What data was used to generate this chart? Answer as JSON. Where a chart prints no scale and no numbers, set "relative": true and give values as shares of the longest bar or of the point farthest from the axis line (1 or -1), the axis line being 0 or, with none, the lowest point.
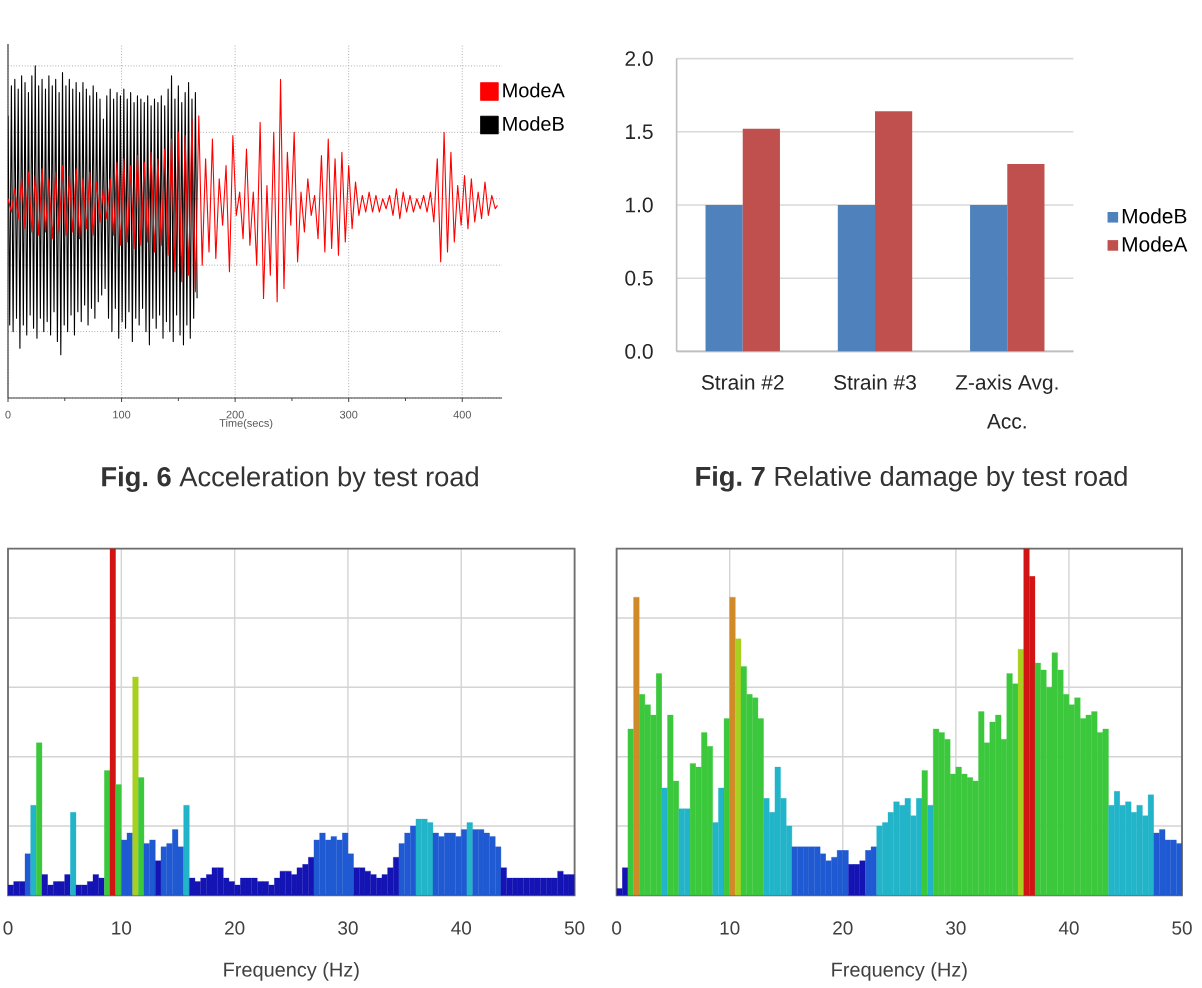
{
  "chart_data": [
    {
      "type": "line",
      "title": "**Fig. 6** Acceleration by test road",
      "xlabel": "Time(secs)",
      "relative": true,
      "xlim": [
        0,
        435
      ],
      "xticks": [
        0,
        {
          "value": 50,
          "label": null
        },
        100,
        {
          "value": 150,
          "label": null
        },
        200,
        {
          "value": 250,
          "label": null
        },
        300,
        {
          "value": 350,
          "label": null
        },
        400
      ],
      "grid": true,
      "legend": "top right",
      "series": [
        {
          "name": "ModeA",
          "color": "#ff0000",
          "x": [
            0,
            3,
            6,
            9,
            12,
            15,
            18,
            21,
            24,
            27,
            30,
            33,
            36,
            39,
            42,
            45,
            48,
            51,
            54,
            57,
            60,
            63,
            66,
            69,
            72,
            75,
            78,
            81,
            84,
            87,
            90,
            93,
            96,
            99,
            102,
            105,
            108,
            111,
            114,
            117,
            120,
            123,
            126,
            129,
            132,
            135,
            138,
            141,
            144,
            147,
            150,
            153,
            156,
            159,
            162,
            165,
            168,
            171,
            174,
            177,
            180,
            183,
            186,
            189,
            192,
            195,
            198,
            201,
            204,
            207,
            210,
            213,
            216,
            219,
            222,
            225,
            228,
            231,
            234,
            237,
            240,
            243,
            246,
            249,
            252,
            255,
            258,
            261,
            264,
            267,
            270,
            273,
            276,
            279,
            282,
            285,
            288,
            291,
            294,
            297,
            300,
            303,
            306,
            309,
            312,
            315,
            318,
            321,
            324,
            327,
            330,
            333,
            336,
            339,
            342,
            345,
            348,
            351,
            354,
            357,
            360,
            363,
            366,
            369,
            372,
            375,
            378,
            381,
            384,
            387,
            390,
            393,
            396,
            399,
            402,
            405,
            408,
            411,
            414,
            417,
            420,
            423,
            426,
            429,
            431
          ],
          "values": [
            0.6,
            0.56,
            0.63,
            0.54,
            0.66,
            0.51,
            0.68,
            0.5,
            0.67,
            0.49,
            0.69,
            0.5,
            0.66,
            0.48,
            0.68,
            0.5,
            0.7,
            0.49,
            0.67,
            0.5,
            0.69,
            0.48,
            0.66,
            0.51,
            0.68,
            0.49,
            0.65,
            0.53,
            0.63,
            0.54,
            0.66,
            0.49,
            0.71,
            0.46,
            0.72,
            0.47,
            0.7,
            0.45,
            0.73,
            0.46,
            0.71,
            0.47,
            0.74,
            0.44,
            0.72,
            0.46,
            0.75,
            0.43,
            0.78,
            0.38,
            0.8,
            0.35,
            0.79,
            0.37,
            0.84,
            0.32,
            0.85,
            0.4,
            0.72,
            0.44,
            0.78,
            0.42,
            0.66,
            0.52,
            0.7,
            0.38,
            0.79,
            0.55,
            0.62,
            0.48,
            0.75,
            0.46,
            0.62,
            0.4,
            0.83,
            0.3,
            0.64,
            0.37,
            0.8,
            0.29,
            0.96,
            0.33,
            0.74,
            0.52,
            0.8,
            0.41,
            0.62,
            0.5,
            0.66,
            0.55,
            0.61,
            0.48,
            0.73,
            0.44,
            0.78,
            0.45,
            0.72,
            0.43,
            0.74,
            0.47,
            0.7,
            0.51,
            0.65,
            0.55,
            0.61,
            0.56,
            0.62,
            0.56,
            0.61,
            0.56,
            0.6,
            0.57,
            0.61,
            0.55,
            0.63,
            0.54,
            0.62,
            0.56,
            0.61,
            0.56,
            0.6,
            0.57,
            0.61,
            0.56,
            0.62,
            0.53,
            0.72,
            0.41,
            0.8,
            0.44,
            0.74,
            0.47,
            0.64,
            0.52,
            0.67,
            0.51,
            0.66,
            0.53,
            0.62,
            0.54,
            0.65,
            0.55,
            0.61,
            0.57,
            0.58
          ]
        },
        {
          "name": "ModeB",
          "color": "#000000",
          "x": [
            0,
            1.5,
            3,
            4.5,
            6,
            7.5,
            9,
            10.5,
            12,
            13.5,
            15,
            16.5,
            18,
            19.5,
            21,
            22.5,
            24,
            25.5,
            27,
            28.5,
            30,
            31.5,
            33,
            34.5,
            36,
            37.5,
            39,
            40.5,
            42,
            43.5,
            45,
            46.5,
            48,
            49.5,
            51,
            52.5,
            54,
            55.5,
            57,
            58.5,
            60,
            61.5,
            63,
            64.5,
            66,
            67.5,
            69,
            70.5,
            72,
            73.5,
            75,
            76.5,
            78,
            79.5,
            81,
            82.5,
            84,
            85.5,
            87,
            88.5,
            90,
            91.5,
            93,
            94.5,
            96,
            97.5,
            99,
            100.5,
            102,
            103.5,
            105,
            106.5,
            108,
            109.5,
            111,
            112.5,
            114,
            115.5,
            117,
            118.5,
            120,
            121.5,
            123,
            124.5,
            126,
            127.5,
            129,
            130.5,
            132,
            133.5,
            135,
            136.5,
            138,
            139.5,
            141,
            142.5,
            144,
            145.5,
            147,
            148.5,
            150,
            151.5,
            153,
            154.5,
            156,
            157.5,
            159,
            160.5,
            162,
            163.5,
            165,
            166.5
          ],
          "values": [
            0.85,
            0.22,
            0.94,
            0.2,
            0.96,
            0.24,
            0.93,
            0.15,
            0.97,
            0.22,
            0.95,
            0.19,
            0.92,
            0.25,
            0.97,
            0.21,
            1,
            0.18,
            0.94,
            0.24,
            0.96,
            0.2,
            0.93,
            0.23,
            0.97,
            0.19,
            0.94,
            0.26,
            0.96,
            0.17,
            0.92,
            0.13,
            0.98,
            0.22,
            0.94,
            0.2,
            0.96,
            0.25,
            0.93,
            0.19,
            0.95,
            0.26,
            0.92,
            0.23,
            0.95,
            0.28,
            0.93,
            0.22,
            0.91,
            0.27,
            0.94,
            0.24,
            0.92,
            0.29,
            0.9,
            0.31,
            0.84,
            0.33,
            0.91,
            0.24,
            0.93,
            0.2,
            0.9,
            0.27,
            0.92,
            0.18,
            0.91,
            0.23,
            0.93,
            0.21,
            0.9,
            0.26,
            0.92,
            0.17,
            0.89,
            0.24,
            0.91,
            0.22,
            0.9,
            0.27,
            0.89,
            0.2,
            0.91,
            0.16,
            0.88,
            0.24,
            0.9,
            0.21,
            0.89,
            0.25,
            0.91,
            0.18,
            0.88,
            0.23,
            0.93,
            0.2,
            0.97,
            0.17,
            0.9,
            0.25,
            0.94,
            0.19,
            0.89,
            0.16,
            0.92,
            0.22,
            0.95,
            0.18,
            0.9,
            0.24,
            0.92,
            0.3
          ]
        }
      ]
    },
    {
      "type": "bar",
      "title": "**Fig. 7** Relative damage by test road",
      "categories": [
        "Strain #2",
        "Strain #3",
        "Z-axis Avg. Acc."
      ],
      "ylim": [
        0,
        2
      ],
      "yticks": [
        {
          "value": 0,
          "label": "0.0"
        },
        {
          "value": 0.5,
          "label": "0.5"
        },
        {
          "value": 1,
          "label": "1.0"
        },
        {
          "value": 1.5,
          "label": "1.5"
        },
        {
          "value": 2,
          "label": "2.0"
        }
      ],
      "grid": "y",
      "legend": "right",
      "series": [
        {
          "name": "ModeB",
          "color": "#4f81bd",
          "values": [
            1,
            1,
            1
          ]
        },
        {
          "name": "ModeA",
          "color": "#c0504d",
          "values": [
            1.52,
            1.64,
            1.28
          ]
        }
      ]
    },
    {
      "type": "bar",
      "xlabel": "Frequency (Hz)",
      "relative": true,
      "xlim": [
        0,
        50
      ],
      "xticks": [
        0,
        10,
        20,
        30,
        40,
        50
      ],
      "grid": true,
      "x": [
        0.25,
        0.75,
        1.25,
        1.75,
        2.25,
        2.75,
        3.25,
        3.75,
        4.25,
        4.75,
        5.25,
        5.75,
        6.25,
        6.75,
        7.25,
        7.75,
        8.25,
        8.75,
        9.25,
        9.75,
        10.25,
        10.75,
        11.25,
        11.75,
        12.25,
        12.75,
        13.25,
        13.75,
        14.25,
        14.75,
        15.25,
        15.75,
        16.25,
        16.75,
        17.25,
        17.75,
        18.25,
        18.75,
        19.25,
        19.75,
        20.25,
        20.75,
        21.25,
        21.75,
        22.25,
        22.75,
        23.25,
        23.75,
        24.25,
        24.75,
        25.25,
        25.75,
        26.25,
        26.75,
        27.25,
        27.75,
        28.25,
        28.75,
        29.25,
        29.75,
        30.25,
        30.75,
        31.25,
        31.75,
        32.25,
        32.75,
        33.25,
        33.75,
        34.25,
        34.75,
        35.25,
        35.75,
        36.25,
        36.75,
        37.25,
        37.75,
        38.25,
        38.75,
        39.25,
        39.75,
        40.25,
        40.75,
        41.25,
        41.75,
        42.25,
        42.75,
        43.25,
        43.75,
        44.25,
        44.75,
        45.25,
        45.75,
        46.25,
        46.75,
        47.25,
        47.75,
        48.25,
        48.75,
        49.25,
        49.75
      ],
      "values": [
        0.03,
        0.04,
        0.04,
        0.12,
        0.26,
        0.44,
        0.06,
        0.03,
        0.04,
        0.04,
        0.06,
        0.24,
        0.03,
        0.03,
        0.04,
        0.06,
        0.05,
        0.36,
        1,
        0.32,
        0.16,
        0.18,
        0.63,
        0.34,
        0.15,
        0.16,
        0.1,
        0.14,
        0.15,
        0.19,
        0.14,
        0.26,
        0.05,
        0.04,
        0.05,
        0.06,
        0.08,
        0.08,
        0.05,
        0.04,
        0.03,
        0.05,
        0.05,
        0.05,
        0.04,
        0.04,
        0.03,
        0.05,
        0.07,
        0.07,
        0.06,
        0.08,
        0.09,
        0.11,
        0.16,
        0.18,
        0.16,
        0.17,
        0.16,
        0.18,
        0.12,
        0.08,
        0.08,
        0.07,
        0.06,
        0.05,
        0.06,
        0.08,
        0.11,
        0.15,
        0.18,
        0.2,
        0.22,
        0.22,
        0.21,
        0.18,
        0.17,
        0.18,
        0.18,
        0.17,
        0.19,
        0.21,
        0.19,
        0.19,
        0.18,
        0.17,
        0.14,
        0.08,
        0.05,
        0.05,
        0.05,
        0.05,
        0.05,
        0.05,
        0.05,
        0.05,
        0.05,
        0.07,
        0.06,
        0.06
      ],
      "colors": [
        "#1414b4",
        "#1414b4",
        "#1414b4",
        "#1f5ad2",
        "#22b4c8",
        "#3cc83c",
        "#1414b4",
        "#1414b4",
        "#1414b4",
        "#1414b4",
        "#1414b4",
        "#22b4c8",
        "#1414b4",
        "#1414b4",
        "#1414b4",
        "#1414b4",
        "#1414b4",
        "#3cc83c",
        "#d21414",
        "#3cc83c",
        "#1f5ad2",
        "#1f5ad2",
        "#a8d020",
        "#3cc83c",
        "#1f5ad2",
        "#1f5ad2",
        "#1414b4",
        "#1f5ad2",
        "#1f5ad2",
        "#1f5ad2",
        "#1f5ad2",
        "#22b4c8",
        "#1414b4",
        "#1414b4",
        "#1414b4",
        "#1414b4",
        "#1414b4",
        "#1414b4",
        "#1414b4",
        "#1414b4",
        "#1414b4",
        "#1414b4",
        "#1414b4",
        "#1414b4",
        "#1414b4",
        "#1414b4",
        "#1414b4",
        "#1414b4",
        "#1414b4",
        "#1414b4",
        "#1414b4",
        "#1414b4",
        "#1414b4",
        "#1414b4",
        "#1f5ad2",
        "#1f5ad2",
        "#1f5ad2",
        "#1f5ad2",
        "#1f5ad2",
        "#1f5ad2",
        "#1f5ad2",
        "#1414b4",
        "#1414b4",
        "#1414b4",
        "#1414b4",
        "#1414b4",
        "#1414b4",
        "#1414b4",
        "#1414b4",
        "#1f5ad2",
        "#1f5ad2",
        "#1f5ad2",
        "#22b4c8",
        "#22b4c8",
        "#22b4c8",
        "#1f5ad2",
        "#1f5ad2",
        "#1f5ad2",
        "#1f5ad2",
        "#1f5ad2",
        "#1f5ad2",
        "#22b4c8",
        "#1f5ad2",
        "#1f5ad2",
        "#1f5ad2",
        "#1f5ad2",
        "#1f5ad2",
        "#1414b4",
        "#1414b4",
        "#1414b4",
        "#1414b4",
        "#1414b4",
        "#1414b4",
        "#1414b4",
        "#1414b4",
        "#1414b4",
        "#1414b4",
        "#1414b4",
        "#1414b4",
        "#1414b4"
      ]
    },
    {
      "type": "bar",
      "xlabel": "Frequency (Hz)",
      "relative": true,
      "xlim": [
        0,
        50
      ],
      "xticks": [
        0,
        10,
        20,
        30,
        40,
        50
      ],
      "grid": true,
      "x": [
        0.25,
        0.75,
        1.25,
        1.75,
        2.25,
        2.75,
        3.25,
        3.75,
        4.25,
        4.75,
        5.25,
        5.75,
        6.25,
        6.75,
        7.25,
        7.75,
        8.25,
        8.75,
        9.25,
        9.75,
        10.25,
        10.75,
        11.25,
        11.75,
        12.25,
        12.75,
        13.25,
        13.75,
        14.25,
        14.75,
        15.25,
        15.75,
        16.25,
        16.75,
        17.25,
        17.75,
        18.25,
        18.75,
        19.25,
        19.75,
        20.25,
        20.75,
        21.25,
        21.75,
        22.25,
        22.75,
        23.25,
        23.75,
        24.25,
        24.75,
        25.25,
        25.75,
        26.25,
        26.75,
        27.25,
        27.75,
        28.25,
        28.75,
        29.25,
        29.75,
        30.25,
        30.75,
        31.25,
        31.75,
        32.25,
        32.75,
        33.25,
        33.75,
        34.25,
        34.75,
        35.25,
        35.75,
        36.25,
        36.75,
        37.25,
        37.75,
        38.25,
        38.75,
        39.25,
        39.75,
        40.25,
        40.75,
        41.25,
        41.75,
        42.25,
        42.75,
        43.25,
        43.75,
        44.25,
        44.75,
        45.25,
        45.75,
        46.25,
        46.75,
        47.25,
        47.75,
        48.25,
        48.75,
        49.25,
        49.75
      ],
      "values": [
        0.02,
        0.08,
        0.48,
        0.86,
        0.58,
        0.55,
        0.52,
        0.64,
        0.31,
        0.52,
        0.33,
        0.25,
        0.25,
        0.38,
        0.37,
        0.47,
        0.43,
        0.21,
        0.31,
        0.51,
        0.86,
        0.74,
        0.66,
        0.58,
        0.57,
        0.51,
        0.28,
        0.24,
        0.37,
        0.28,
        0.2,
        0.14,
        0.14,
        0.14,
        0.14,
        0.14,
        0.12,
        0.1,
        0.11,
        0.13,
        0.13,
        0.09,
        0.09,
        0.1,
        0.13,
        0.14,
        0.2,
        0.21,
        0.24,
        0.27,
        0.26,
        0.28,
        0.23,
        0.28,
        0.36,
        0.26,
        0.48,
        0.47,
        0.45,
        0.35,
        0.37,
        0.35,
        0.34,
        0.33,
        0.53,
        0.44,
        0.5,
        0.52,
        0.45,
        0.64,
        0.61,
        0.71,
        1,
        0.92,
        0.67,
        0.65,
        0.6,
        0.7,
        0.65,
        0.58,
        0.55,
        0.57,
        0.51,
        0.52,
        0.53,
        0.47,
        0.48,
        0.26,
        0.3,
        0.26,
        0.27,
        0.24,
        0.26,
        0.23,
        0.29,
        0.18,
        0.19,
        0.16,
        0.16,
        0.15
      ],
      "colors": [
        "#1414b4",
        "#1414b4",
        "#3cc83c",
        "#d08a28",
        "#3cc83c",
        "#3cc83c",
        "#3cc83c",
        "#3cc83c",
        "#22b4c8",
        "#3cc83c",
        "#3cc83c",
        "#22b4c8",
        "#22b4c8",
        "#3cc83c",
        "#3cc83c",
        "#3cc83c",
        "#3cc83c",
        "#22b4c8",
        "#22b4c8",
        "#3cc83c",
        "#d08a28",
        "#a8d020",
        "#3cc83c",
        "#3cc83c",
        "#3cc83c",
        "#3cc83c",
        "#22b4c8",
        "#22b4c8",
        "#22b4c8",
        "#22b4c8",
        "#22b4c8",
        "#1f5ad2",
        "#1f5ad2",
        "#1f5ad2",
        "#1f5ad2",
        "#1f5ad2",
        "#1f5ad2",
        "#1f5ad2",
        "#1f5ad2",
        "#1f5ad2",
        "#1f5ad2",
        "#1414b4",
        "#1414b4",
        "#1414b4",
        "#1f5ad2",
        "#1f5ad2",
        "#22b4c8",
        "#22b4c8",
        "#22b4c8",
        "#22b4c8",
        "#22b4c8",
        "#22b4c8",
        "#22b4c8",
        "#22b4c8",
        "#3cc83c",
        "#22b4c8",
        "#3cc83c",
        "#3cc83c",
        "#3cc83c",
        "#3cc83c",
        "#3cc83c",
        "#3cc83c",
        "#3cc83c",
        "#3cc83c",
        "#3cc83c",
        "#3cc83c",
        "#3cc83c",
        "#3cc83c",
        "#3cc83c",
        "#3cc83c",
        "#3cc83c",
        "#a8d020",
        "#d21414",
        "#d21414",
        "#3cc83c",
        "#3cc83c",
        "#3cc83c",
        "#3cc83c",
        "#3cc83c",
        "#3cc83c",
        "#3cc83c",
        "#3cc83c",
        "#3cc83c",
        "#3cc83c",
        "#3cc83c",
        "#3cc83c",
        "#3cc83c",
        "#22b4c8",
        "#22b4c8",
        "#22b4c8",
        "#22b4c8",
        "#22b4c8",
        "#22b4c8",
        "#22b4c8",
        "#22b4c8",
        "#1f5ad2",
        "#1f5ad2",
        "#1f5ad2",
        "#1f5ad2",
        "#1f5ad2"
      ]
    }
  ]
}
